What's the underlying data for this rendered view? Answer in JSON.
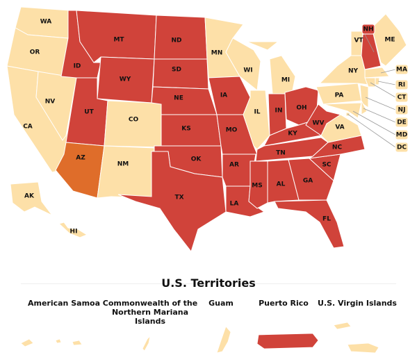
{
  "map": {
    "states": [
      {
        "label": "WA",
        "color": "#fde0a8"
      },
      {
        "label": "OR",
        "color": "#fde0a8"
      },
      {
        "label": "CA",
        "color": "#fde0a8"
      },
      {
        "label": "NV",
        "color": "#fde0a8"
      },
      {
        "label": "ID",
        "color": "#d0433a"
      },
      {
        "label": "MT",
        "color": "#d0433a"
      },
      {
        "label": "WY",
        "color": "#d0433a"
      },
      {
        "label": "UT",
        "color": "#d0433a"
      },
      {
        "label": "CO",
        "color": "#fde0a8"
      },
      {
        "label": "AZ",
        "color": "#df6d2a"
      },
      {
        "label": "NM",
        "color": "#fde0a8"
      },
      {
        "label": "ND",
        "color": "#d0433a"
      },
      {
        "label": "SD",
        "color": "#d0433a"
      },
      {
        "label": "NE",
        "color": "#d0433a"
      },
      {
        "label": "KS",
        "color": "#d0433a"
      },
      {
        "label": "OK",
        "color": "#d0433a"
      },
      {
        "label": "TX",
        "color": "#d0433a"
      },
      {
        "label": "MN",
        "color": "#fde0a8"
      },
      {
        "label": "IA",
        "color": "#d0433a"
      },
      {
        "label": "MO",
        "color": "#d0433a"
      },
      {
        "label": "AR",
        "color": "#d0433a"
      },
      {
        "label": "LA",
        "color": "#d0433a"
      },
      {
        "label": "WI",
        "color": "#fde0a8"
      },
      {
        "label": "IL",
        "color": "#fde0a8"
      },
      {
        "label": "MI",
        "color": "#fde0a8"
      },
      {
        "label": "IN",
        "color": "#d0433a"
      },
      {
        "label": "OH",
        "color": "#d0433a"
      },
      {
        "label": "KY",
        "color": "#d0433a"
      },
      {
        "label": "TN",
        "color": "#d0433a"
      },
      {
        "label": "MS",
        "color": "#d0433a"
      },
      {
        "label": "AL",
        "color": "#d0433a"
      },
      {
        "label": "GA",
        "color": "#d0433a"
      },
      {
        "label": "FL",
        "color": "#d0433a"
      },
      {
        "label": "SC",
        "color": "#d0433a"
      },
      {
        "label": "NC",
        "color": "#d0433a"
      },
      {
        "label": "VA",
        "color": "#fde0a8"
      },
      {
        "label": "WV",
        "color": "#d0433a"
      },
      {
        "label": "PA",
        "color": "#fde0a8"
      },
      {
        "label": "NY",
        "color": "#fde0a8"
      },
      {
        "label": "VT",
        "color": "#fde0a8"
      },
      {
        "label": "NH",
        "color": "#d0433a"
      },
      {
        "label": "ME",
        "color": "#fde0a8"
      },
      {
        "label": "MA",
        "color": "#fde0a8"
      },
      {
        "label": "RI",
        "color": "#fde0a8"
      },
      {
        "label": "CT",
        "color": "#fde0a8"
      },
      {
        "label": "NJ",
        "color": "#fde0a8"
      },
      {
        "label": "DE",
        "color": "#fde0a8"
      },
      {
        "label": "MD",
        "color": "#fde0a8"
      },
      {
        "label": "DC",
        "color": "#fde0a8"
      },
      {
        "label": "AK",
        "color": "#fde0a8"
      },
      {
        "label": "HI",
        "color": "#fde0a8"
      }
    ]
  },
  "territories": {
    "title": "U.S. Territories",
    "items": [
      {
        "name": "American Samoa",
        "color": "#fde0a8"
      },
      {
        "name": "Commonwealth of the Northern Mariana Islands",
        "color": "#fde0a8"
      },
      {
        "name": "Guam",
        "color": "#fde0a8"
      },
      {
        "name": "Puerto Rico",
        "color": "#d0433a"
      },
      {
        "name": "U.S. Virgin Islands",
        "color": "#fde0a8"
      }
    ]
  }
}
